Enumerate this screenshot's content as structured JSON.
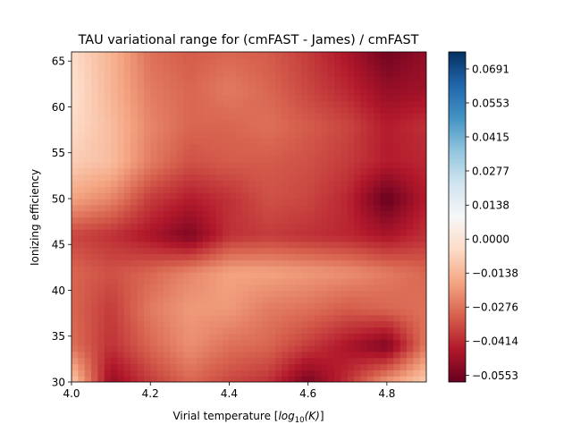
{
  "chart_data": {
    "type": "heatmap",
    "title": "TAU variational range for (cmFAST - James) / cmFAST",
    "xlabel_prefix": "Virial temperature [",
    "xlabel_math_base": "log",
    "xlabel_math_sub": "10",
    "xlabel_math_arg": "(K)",
    "xlabel_suffix": "]",
    "ylabel": "Ionizing efficiency",
    "xlim": [
      4.0,
      4.9
    ],
    "ylim": [
      30,
      66
    ],
    "x_ticks": [
      4.0,
      4.2,
      4.4,
      4.6,
      4.8
    ],
    "x_tick_labels": [
      "4.0",
      "4.2",
      "4.4",
      "4.6",
      "4.8"
    ],
    "y_ticks": [
      30,
      35,
      40,
      45,
      50,
      55,
      60,
      65
    ],
    "y_tick_labels": [
      "30",
      "35",
      "40",
      "45",
      "50",
      "55",
      "60",
      "65"
    ],
    "colormap": "RdBu",
    "colormap_stops": [
      "#67001f",
      "#b2182b",
      "#d6604d",
      "#f4a582",
      "#fddbc7",
      "#f7f7f7",
      "#d1e5f0",
      "#92c5de",
      "#4393c3",
      "#2166ac",
      "#053061"
    ],
    "zlim": [
      -0.058,
      0.076
    ],
    "colorbar_ticks": [
      -0.0553,
      -0.0414,
      -0.0276,
      -0.0138,
      0.0,
      0.0138,
      0.0277,
      0.0415,
      0.0553,
      0.0691
    ],
    "colorbar_tick_labels": [
      "−0.0553",
      "−0.0414",
      "−0.0276",
      "−0.0138",
      "0.0000",
      "0.0138",
      "0.0277",
      "0.0415",
      "0.0553",
      "0.0691"
    ],
    "x": [
      4.0,
      4.1,
      4.2,
      4.3,
      4.4,
      4.5,
      4.6,
      4.7,
      4.8,
      4.9
    ],
    "y": [
      30,
      34,
      38,
      42,
      46,
      50,
      54,
      58,
      62,
      66
    ],
    "z": [
      [
        -0.008,
        -0.05,
        -0.038,
        -0.03,
        -0.036,
        -0.04,
        -0.055,
        -0.04,
        -0.02,
        -0.008
      ],
      [
        -0.028,
        -0.04,
        -0.03,
        -0.022,
        -0.028,
        -0.03,
        -0.038,
        -0.046,
        -0.054,
        -0.026
      ],
      [
        -0.03,
        -0.038,
        -0.026,
        -0.02,
        -0.02,
        -0.026,
        -0.028,
        -0.032,
        -0.03,
        -0.028
      ],
      [
        -0.03,
        -0.034,
        -0.03,
        -0.024,
        -0.018,
        -0.018,
        -0.02,
        -0.022,
        -0.026,
        -0.03
      ],
      [
        -0.036,
        -0.04,
        -0.046,
        -0.054,
        -0.04,
        -0.038,
        -0.04,
        -0.042,
        -0.046,
        -0.04
      ],
      [
        -0.018,
        -0.024,
        -0.038,
        -0.044,
        -0.04,
        -0.034,
        -0.036,
        -0.042,
        -0.058,
        -0.044
      ],
      [
        -0.008,
        -0.012,
        -0.026,
        -0.034,
        -0.032,
        -0.032,
        -0.034,
        -0.038,
        -0.044,
        -0.042
      ],
      [
        -0.004,
        -0.012,
        -0.024,
        -0.03,
        -0.03,
        -0.028,
        -0.032,
        -0.036,
        -0.044,
        -0.04
      ],
      [
        -0.002,
        -0.014,
        -0.026,
        -0.03,
        -0.026,
        -0.03,
        -0.036,
        -0.042,
        -0.05,
        -0.048
      ],
      [
        -0.004,
        -0.014,
        -0.028,
        -0.032,
        -0.03,
        -0.032,
        -0.038,
        -0.046,
        -0.056,
        -0.05
      ]
    ]
  }
}
